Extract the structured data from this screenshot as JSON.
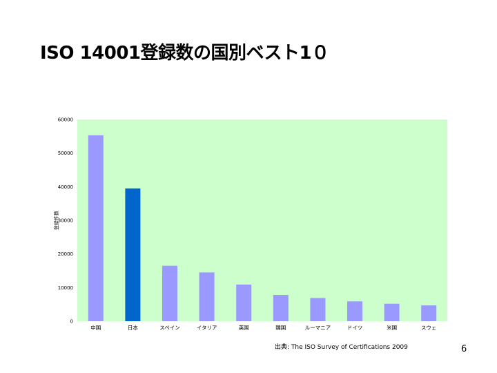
{
  "slide": {
    "title": "ISO 14001登録数の国別ベスト1０",
    "source": "出典: The ISO Survey of Certifications 2009",
    "page_number": "6"
  },
  "chart_data": {
    "type": "bar",
    "title": "",
    "xlabel": "",
    "ylabel": "登録件数",
    "ylim": [
      0,
      60000
    ],
    "yticks": [
      "0",
      "10000",
      "20000",
      "30000",
      "40000",
      "50000",
      "60000"
    ],
    "categories": [
      "中国",
      "日本",
      "スペイン",
      "イタリア",
      "英国",
      "韓国",
      "ルーマニア",
      "ドイツ",
      "米国",
      "スウェ"
    ],
    "values": [
      55300,
      39500,
      16500,
      14500,
      10900,
      7800,
      6900,
      5900,
      5200,
      4700
    ],
    "grid": false,
    "legend": "none",
    "colors": {
      "plot_background": "#ccffcc",
      "bar_default": "#9999ff",
      "bar_highlight": "#0066cc",
      "highlight_index": 1
    }
  }
}
